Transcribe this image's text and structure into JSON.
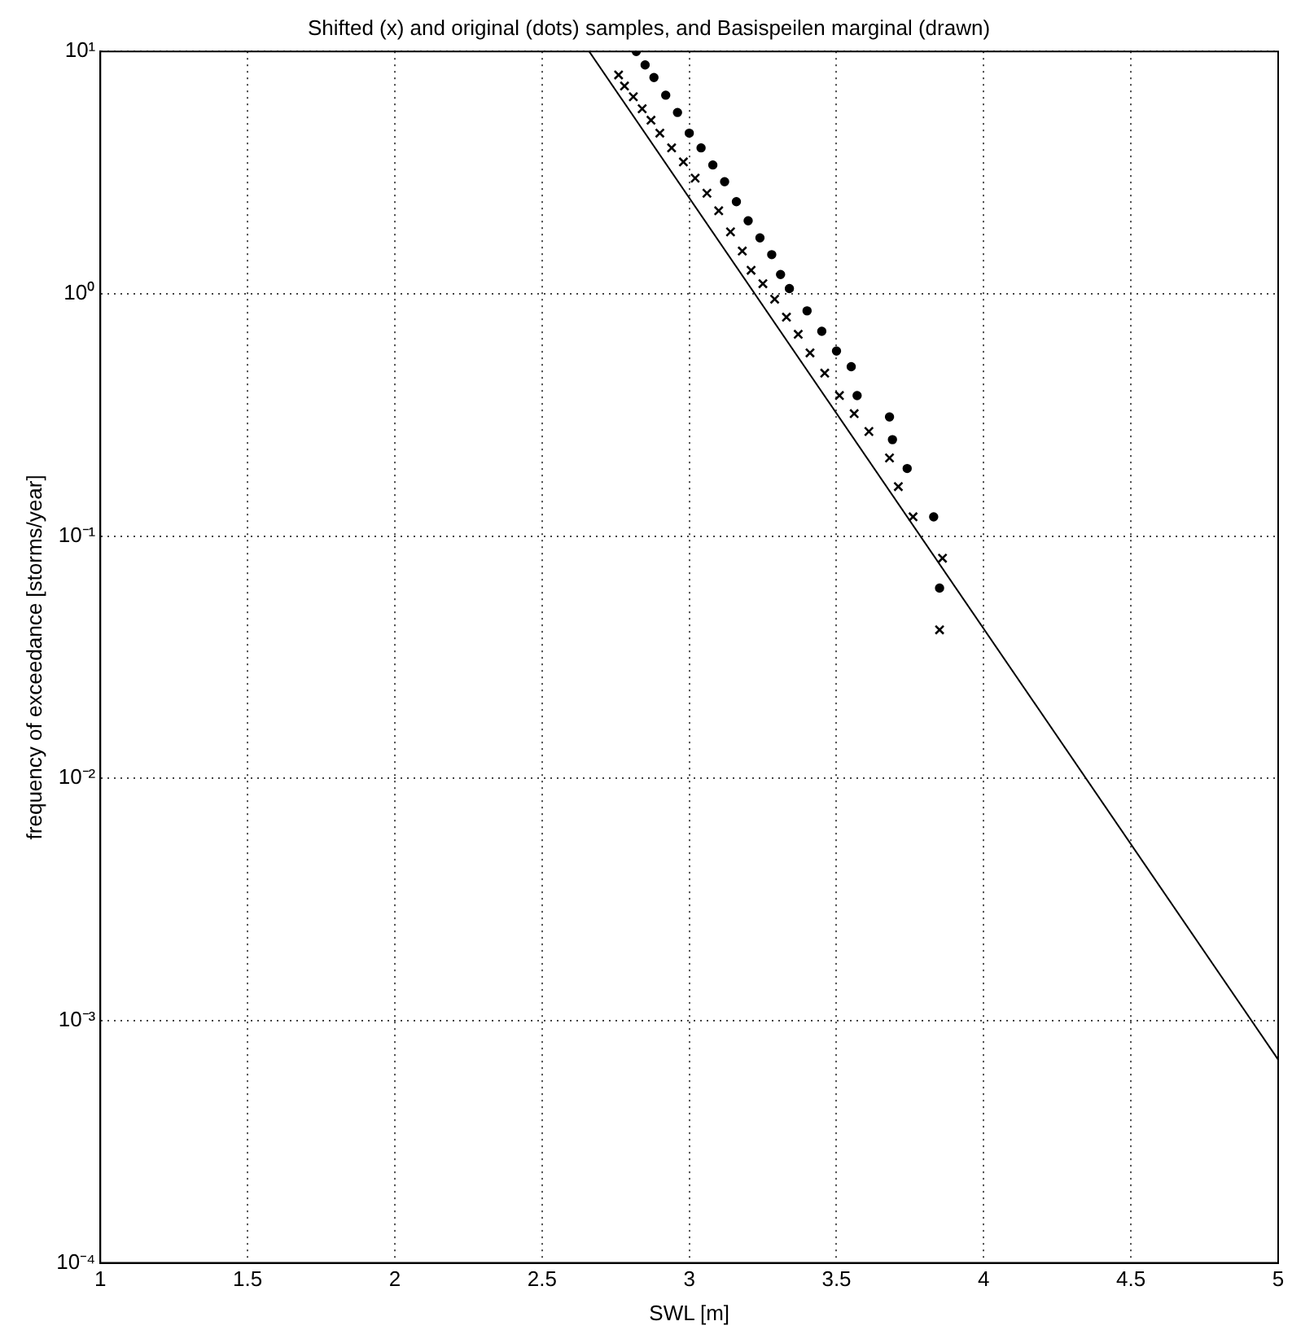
{
  "chart_data": {
    "type": "scatter",
    "title": "Shifted (x) and original (dots) samples, and Basispeilen marginal (drawn)",
    "xlabel": "SWL [m]",
    "ylabel": "frequency of exceedance [storms/year]",
    "log": "y",
    "grid": true,
    "legend": false,
    "xlim": [
      1,
      5
    ],
    "xticks": [
      1,
      1.5,
      2,
      2.5,
      3,
      3.5,
      4,
      4.5,
      5
    ],
    "ylim": [
      0.0001,
      10
    ],
    "yticks": [
      {
        "value": 0.0001,
        "label": "10⁻⁴"
      },
      {
        "value": 0.001,
        "label": "10⁻³"
      },
      {
        "value": 0.01,
        "label": "10⁻²"
      },
      {
        "value": 0.1,
        "label": "10⁻¹"
      },
      {
        "value": 1,
        "label": "10⁰"
      },
      {
        "value": 10,
        "label": "10¹"
      }
    ],
    "series": [
      {
        "marker": "cross",
        "color": "#000000",
        "x": [
          2.76,
          2.78,
          2.81,
          2.84,
          2.87,
          2.9,
          2.94,
          2.98,
          3.02,
          3.06,
          3.1,
          3.14,
          3.18,
          3.21,
          3.25,
          3.29,
          3.33,
          3.37,
          3.41,
          3.46,
          3.51,
          3.56,
          3.61,
          3.68,
          3.71,
          3.76,
          3.86,
          3.85
        ],
        "values": [
          8,
          7.2,
          6.5,
          5.8,
          5.2,
          4.6,
          4,
          3.5,
          3,
          2.6,
          2.2,
          1.8,
          1.5,
          1.25,
          1.1,
          0.95,
          0.8,
          0.68,
          0.57,
          0.47,
          0.38,
          0.32,
          0.27,
          0.21,
          0.16,
          0.12,
          0.081,
          0.041
        ]
      },
      {
        "marker": "circle",
        "color": "#000000",
        "x": [
          2.82,
          2.85,
          2.88,
          2.92,
          2.96,
          3,
          3.04,
          3.08,
          3.12,
          3.16,
          3.2,
          3.24,
          3.28,
          3.31,
          3.34,
          3.4,
          3.45,
          3.5,
          3.55,
          3.57,
          3.68,
          3.69,
          3.74,
          3.83,
          3.85
        ],
        "values": [
          10,
          8.8,
          7.8,
          6.6,
          5.6,
          4.6,
          4,
          3.4,
          2.9,
          2.4,
          2,
          1.7,
          1.45,
          1.2,
          1.05,
          0.85,
          0.7,
          0.58,
          0.5,
          0.38,
          0.31,
          0.25,
          0.19,
          0.12,
          0.061
        ]
      },
      {
        "type": "line",
        "marker": "none",
        "color": "#000000",
        "x": [
          2.66,
          5
        ],
        "values": [
          10,
          0.00069
        ]
      }
    ]
  }
}
